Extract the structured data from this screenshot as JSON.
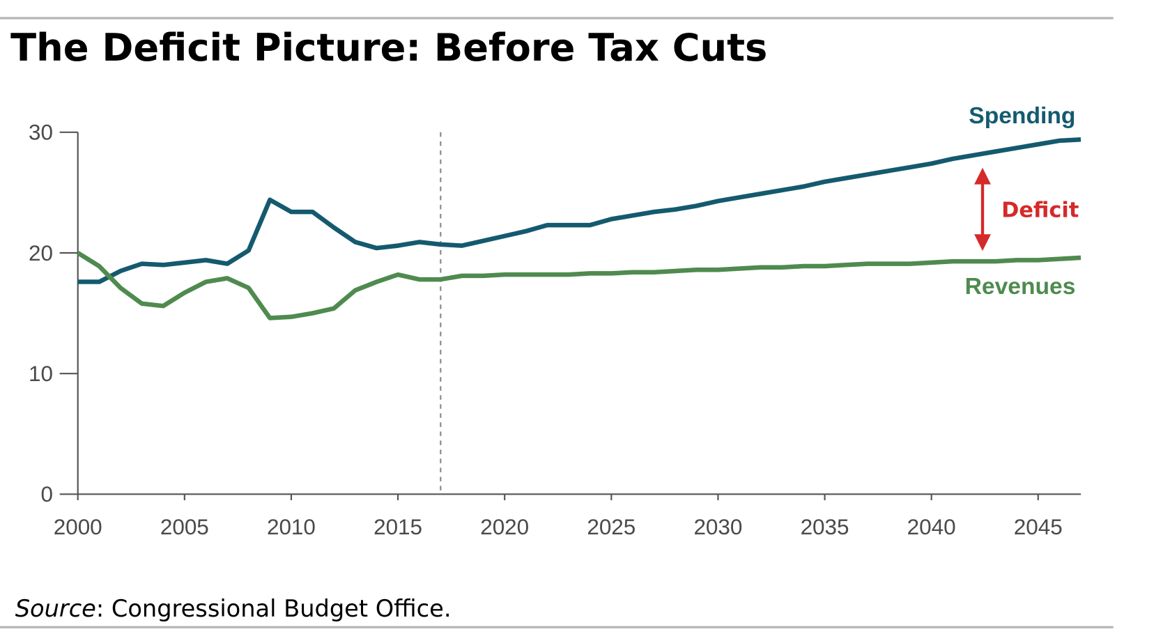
{
  "chart_data": {
    "type": "line",
    "title": "The Deficit Picture: Before Tax Cuts",
    "source": [
      "Source",
      ": Congressional Budget Office."
    ],
    "annotation": "Deficit",
    "x": [
      2000,
      2001,
      2002,
      2003,
      2004,
      2005,
      2006,
      2007,
      2008,
      2009,
      2010,
      2011,
      2012,
      2013,
      2014,
      2015,
      2016,
      2017,
      2018,
      2019,
      2020,
      2021,
      2022,
      2023,
      2024,
      2025,
      2026,
      2027,
      2028,
      2029,
      2030,
      2031,
      2032,
      2033,
      2034,
      2035,
      2036,
      2037,
      2038,
      2039,
      2040,
      2041,
      2042,
      2043,
      2044,
      2045,
      2046,
      2047
    ],
    "series": [
      {
        "name": "Spending",
        "color": "#145a6f",
        "values": [
          17.6,
          17.6,
          18.5,
          19.1,
          19.0,
          19.2,
          19.4,
          19.1,
          20.2,
          24.4,
          23.4,
          23.4,
          22.1,
          20.9,
          20.4,
          20.6,
          20.9,
          20.7,
          20.6,
          21.0,
          21.4,
          21.8,
          22.3,
          22.3,
          22.3,
          22.8,
          23.1,
          23.4,
          23.6,
          23.9,
          24.3,
          24.6,
          24.9,
          25.2,
          25.5,
          25.9,
          26.2,
          26.5,
          26.8,
          27.1,
          27.4,
          27.8,
          28.1,
          28.4,
          28.7,
          29.0,
          29.3,
          29.4
        ]
      },
      {
        "name": "Revenues",
        "color": "#4f8a4f",
        "values": [
          20.0,
          18.9,
          17.1,
          15.8,
          15.6,
          16.7,
          17.6,
          17.9,
          17.1,
          14.6,
          14.7,
          15.0,
          15.4,
          16.9,
          17.6,
          18.2,
          17.8,
          17.8,
          18.1,
          18.1,
          18.2,
          18.2,
          18.2,
          18.2,
          18.3,
          18.3,
          18.4,
          18.4,
          18.5,
          18.6,
          18.6,
          18.7,
          18.8,
          18.8,
          18.9,
          18.9,
          19.0,
          19.1,
          19.1,
          19.1,
          19.2,
          19.3,
          19.3,
          19.3,
          19.4,
          19.4,
          19.5,
          19.6
        ]
      }
    ],
    "projection_start": 2017,
    "xlim": [
      2000,
      2047
    ],
    "xticks": [
      2000,
      2005,
      2010,
      2015,
      2020,
      2025,
      2030,
      2035,
      2040,
      2045
    ],
    "ylim": [
      0,
      30
    ],
    "yticks": [
      0,
      10,
      20,
      30
    ]
  }
}
